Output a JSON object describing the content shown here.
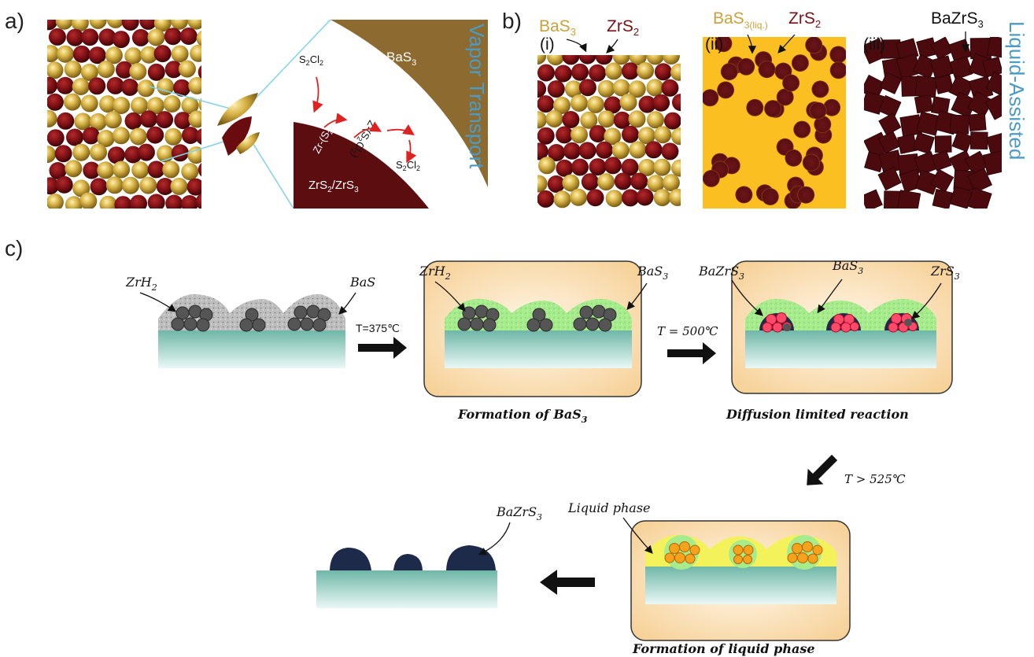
{
  "panels": {
    "a": {
      "label": "a)",
      "bas3": "BaS",
      "bas3_sub": "3",
      "zrs_label_1": "ZrS",
      "zrs_label_sub1": "2",
      "zrs_label_mid": "/ZrS",
      "zrs_label_sub2": "3",
      "s2cl2_top": "S",
      "s2cl2_bottom": "S",
      "sub2": "2",
      "cl": "Cl",
      "zr_s2cl2": "Zr-(S",
      "zr_s2cl2_end": "Cl",
      "zr_s2cl2_close": ")",
      "zr_s2cl2_mirror": "Z-(S",
      "vapor_transport": "Vapor Transport"
    },
    "b": {
      "label": "b)",
      "i": "(i)",
      "ii": "(ii)",
      "iii": "(iii)",
      "bas": "BaS",
      "sub3": "3",
      "zrs": "ZrS",
      "sub2": "2",
      "liq": "3(liq.)",
      "bazrs": "BaZrS",
      "liquid_assisted": "Liquid-Assisted"
    },
    "c": {
      "label": "c)",
      "zrh": "ZrH",
      "sub2": "2",
      "bas": "BaS",
      "bas3": "BaS",
      "sub3": "3",
      "bazrs3": "BaZrS",
      "zrs3": "ZrS",
      "t375": "T=375℃",
      "t500": "T = 500℃",
      "t525": "T > 525℃",
      "formation_bas3": "Formation of BaS",
      "diffusion": "Diffusion limited reaction",
      "liquid_phase": "Liquid phase",
      "formation_liquid": "Formation of liquid phase"
    }
  },
  "colors": {
    "gold": "#c9a23a",
    "dark_red": "#7a0f14",
    "brown": "#8d6a2f",
    "maroon": "#5b0d10",
    "blue_text": "#4a9cc6",
    "substrate": "#7fc4b4",
    "capsule": "#f7d9a8",
    "green": "#9fe38a",
    "liquid": "#f5f26a",
    "navy": "#1e2a4a"
  }
}
